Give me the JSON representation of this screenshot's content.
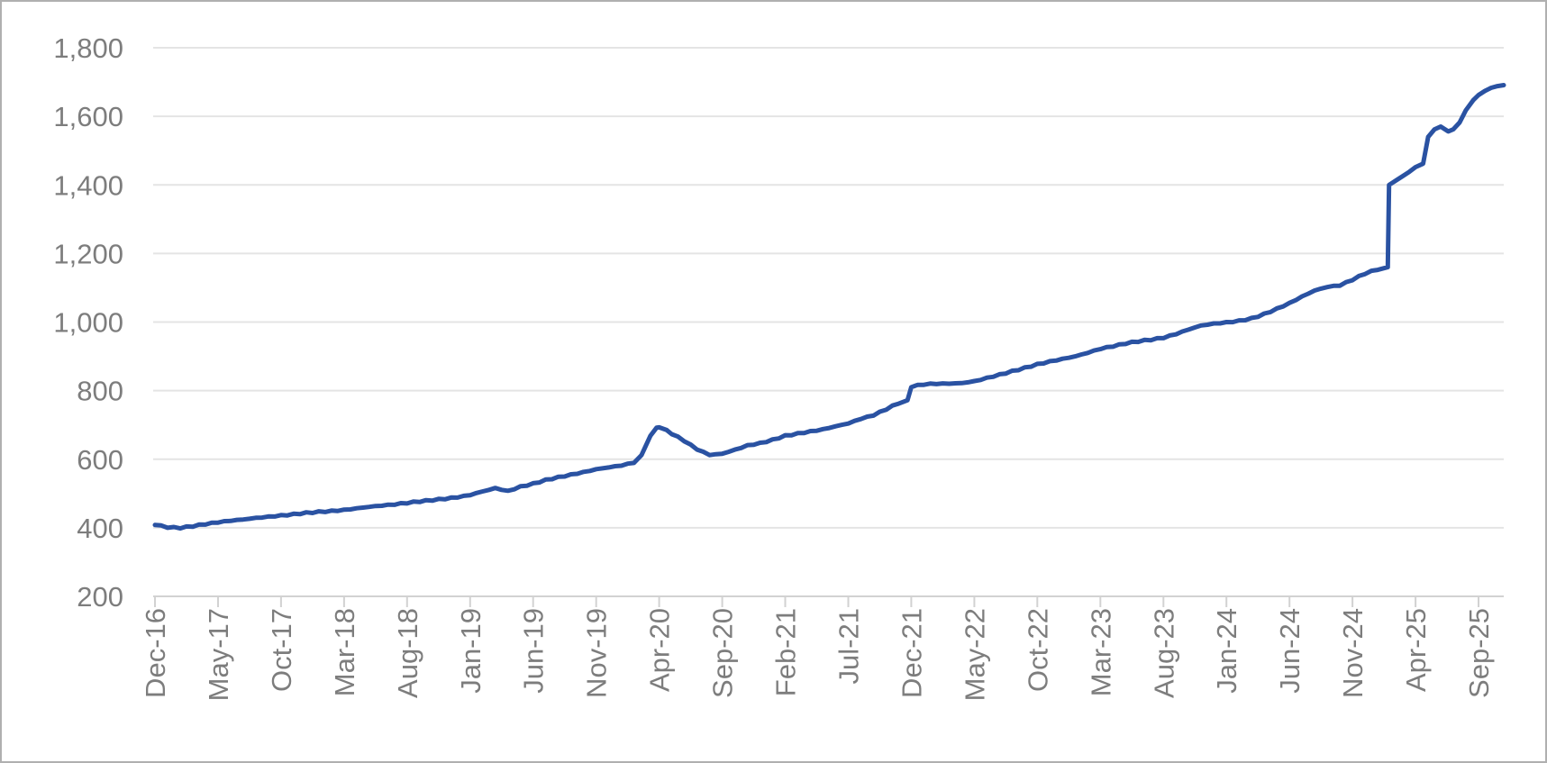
{
  "chart_data": {
    "type": "line",
    "title": "",
    "legend": "none",
    "grid": "horizontal",
    "x_label_rotation": -90,
    "xlim_months": [
      0,
      107
    ],
    "ylim": [
      200,
      1800
    ],
    "colors": {
      "line": "#2a52a2",
      "grid": "#e4e4e4",
      "axis": "#d2d2d2",
      "label": "#7d7d7d",
      "background": "#ffffff",
      "border": "#b0b0b0"
    },
    "y_ticks": [
      {
        "label": "200",
        "value": 200
      },
      {
        "label": "400",
        "value": 400
      },
      {
        "label": "600",
        "value": 600
      },
      {
        "label": "800",
        "value": 800
      },
      {
        "label": "1,000",
        "value": 1000
      },
      {
        "label": "1,200",
        "value": 1200
      },
      {
        "label": "1,400",
        "value": 1400
      },
      {
        "label": "1,600",
        "value": 1600
      },
      {
        "label": "1,800",
        "value": 1800
      }
    ],
    "x_ticks": [
      {
        "label": "Dec-16",
        "month": 0
      },
      {
        "label": "May-17",
        "month": 5
      },
      {
        "label": "Oct-17",
        "month": 10
      },
      {
        "label": "Mar-18",
        "month": 15
      },
      {
        "label": "Aug-18",
        "month": 20
      },
      {
        "label": "Jan-19",
        "month": 25
      },
      {
        "label": "Jun-19",
        "month": 30
      },
      {
        "label": "Nov-19",
        "month": 35
      },
      {
        "label": "Apr-20",
        "month": 40
      },
      {
        "label": "Sep-20",
        "month": 45
      },
      {
        "label": "Feb-21",
        "month": 50
      },
      {
        "label": "Jul-21",
        "month": 55
      },
      {
        "label": "Dec-21",
        "month": 60
      },
      {
        "label": "May-22",
        "month": 65
      },
      {
        "label": "Oct-22",
        "month": 70
      },
      {
        "label": "Mar-23",
        "month": 75
      },
      {
        "label": "Aug-23",
        "month": 80
      },
      {
        "label": "Jan-24",
        "month": 85
      },
      {
        "label": "Jun-24",
        "month": 90
      },
      {
        "label": "Nov-24",
        "month": 95
      },
      {
        "label": "Apr-25",
        "month": 100
      },
      {
        "label": "Sep-25",
        "month": 105
      }
    ],
    "series": [
      {
        "color": "#2a52a2",
        "points": [
          [
            0,
            408
          ],
          [
            1,
            400
          ],
          [
            2,
            398
          ],
          [
            3,
            403
          ],
          [
            4,
            409
          ],
          [
            5,
            415
          ],
          [
            6,
            420
          ],
          [
            7,
            424
          ],
          [
            8,
            429
          ],
          [
            9,
            433
          ],
          [
            10,
            437
          ],
          [
            11,
            441
          ],
          [
            12,
            445
          ],
          [
            13,
            448
          ],
          [
            14,
            450
          ],
          [
            15,
            453
          ],
          [
            16,
            457
          ],
          [
            17,
            461
          ],
          [
            18,
            464
          ],
          [
            19,
            467
          ],
          [
            20,
            471
          ],
          [
            21,
            475
          ],
          [
            22,
            479
          ],
          [
            23,
            483
          ],
          [
            24,
            488
          ],
          [
            25,
            495
          ],
          [
            26,
            506
          ],
          [
            27,
            516
          ],
          [
            28,
            508
          ],
          [
            29,
            521
          ],
          [
            30,
            530
          ],
          [
            31,
            541
          ],
          [
            32,
            549
          ],
          [
            33,
            556
          ],
          [
            34,
            563
          ],
          [
            35,
            571
          ],
          [
            36,
            576
          ],
          [
            37,
            581
          ],
          [
            38,
            589
          ],
          [
            38.6,
            612
          ],
          [
            39.3,
            668
          ],
          [
            39.8,
            692
          ],
          [
            40,
            693
          ],
          [
            40.6,
            685
          ],
          [
            41,
            673
          ],
          [
            42,
            652
          ],
          [
            43,
            628
          ],
          [
            44,
            612
          ],
          [
            45,
            616
          ],
          [
            46,
            628
          ],
          [
            47,
            641
          ],
          [
            48,
            648
          ],
          [
            49,
            658
          ],
          [
            50,
            670
          ],
          [
            51,
            676
          ],
          [
            52,
            682
          ],
          [
            53,
            688
          ],
          [
            54,
            696
          ],
          [
            55,
            704
          ],
          [
            56,
            717
          ],
          [
            57,
            727
          ],
          [
            58,
            744
          ],
          [
            59,
            762
          ],
          [
            59.7,
            772
          ],
          [
            60,
            810
          ],
          [
            61,
            817
          ],
          [
            62,
            819
          ],
          [
            63,
            820
          ],
          [
            64,
            822
          ],
          [
            65,
            828
          ],
          [
            66,
            838
          ],
          [
            67,
            848
          ],
          [
            68,
            858
          ],
          [
            69,
            868
          ],
          [
            70,
            878
          ],
          [
            71,
            886
          ],
          [
            72,
            893
          ],
          [
            73,
            900
          ],
          [
            74,
            910
          ],
          [
            75,
            921
          ],
          [
            76,
            928
          ],
          [
            77,
            936
          ],
          [
            78,
            942
          ],
          [
            79,
            947
          ],
          [
            80,
            953
          ],
          [
            81,
            964
          ],
          [
            82,
            978
          ],
          [
            83,
            990
          ],
          [
            84,
            996
          ],
          [
            85,
            1000
          ],
          [
            86,
            1005
          ],
          [
            87,
            1012
          ],
          [
            88,
            1025
          ],
          [
            89,
            1040
          ],
          [
            90,
            1056
          ],
          [
            91,
            1075
          ],
          [
            92,
            1092
          ],
          [
            93,
            1102
          ],
          [
            94,
            1106
          ],
          [
            95,
            1122
          ],
          [
            96,
            1140
          ],
          [
            97,
            1152
          ],
          [
            97.8,
            1160
          ],
          [
            97.9,
            1400
          ],
          [
            98.5,
            1414
          ],
          [
            99,
            1426
          ],
          [
            99.5,
            1438
          ],
          [
            100,
            1452
          ],
          [
            100.6,
            1462
          ],
          [
            101,
            1540
          ],
          [
            101.5,
            1562
          ],
          [
            102,
            1570
          ],
          [
            102.6,
            1556
          ],
          [
            103,
            1562
          ],
          [
            103.5,
            1582
          ],
          [
            104,
            1618
          ],
          [
            104.6,
            1648
          ],
          [
            105,
            1662
          ],
          [
            105.5,
            1674
          ],
          [
            106,
            1683
          ],
          [
            106.5,
            1688
          ],
          [
            107,
            1691
          ]
        ]
      }
    ]
  }
}
